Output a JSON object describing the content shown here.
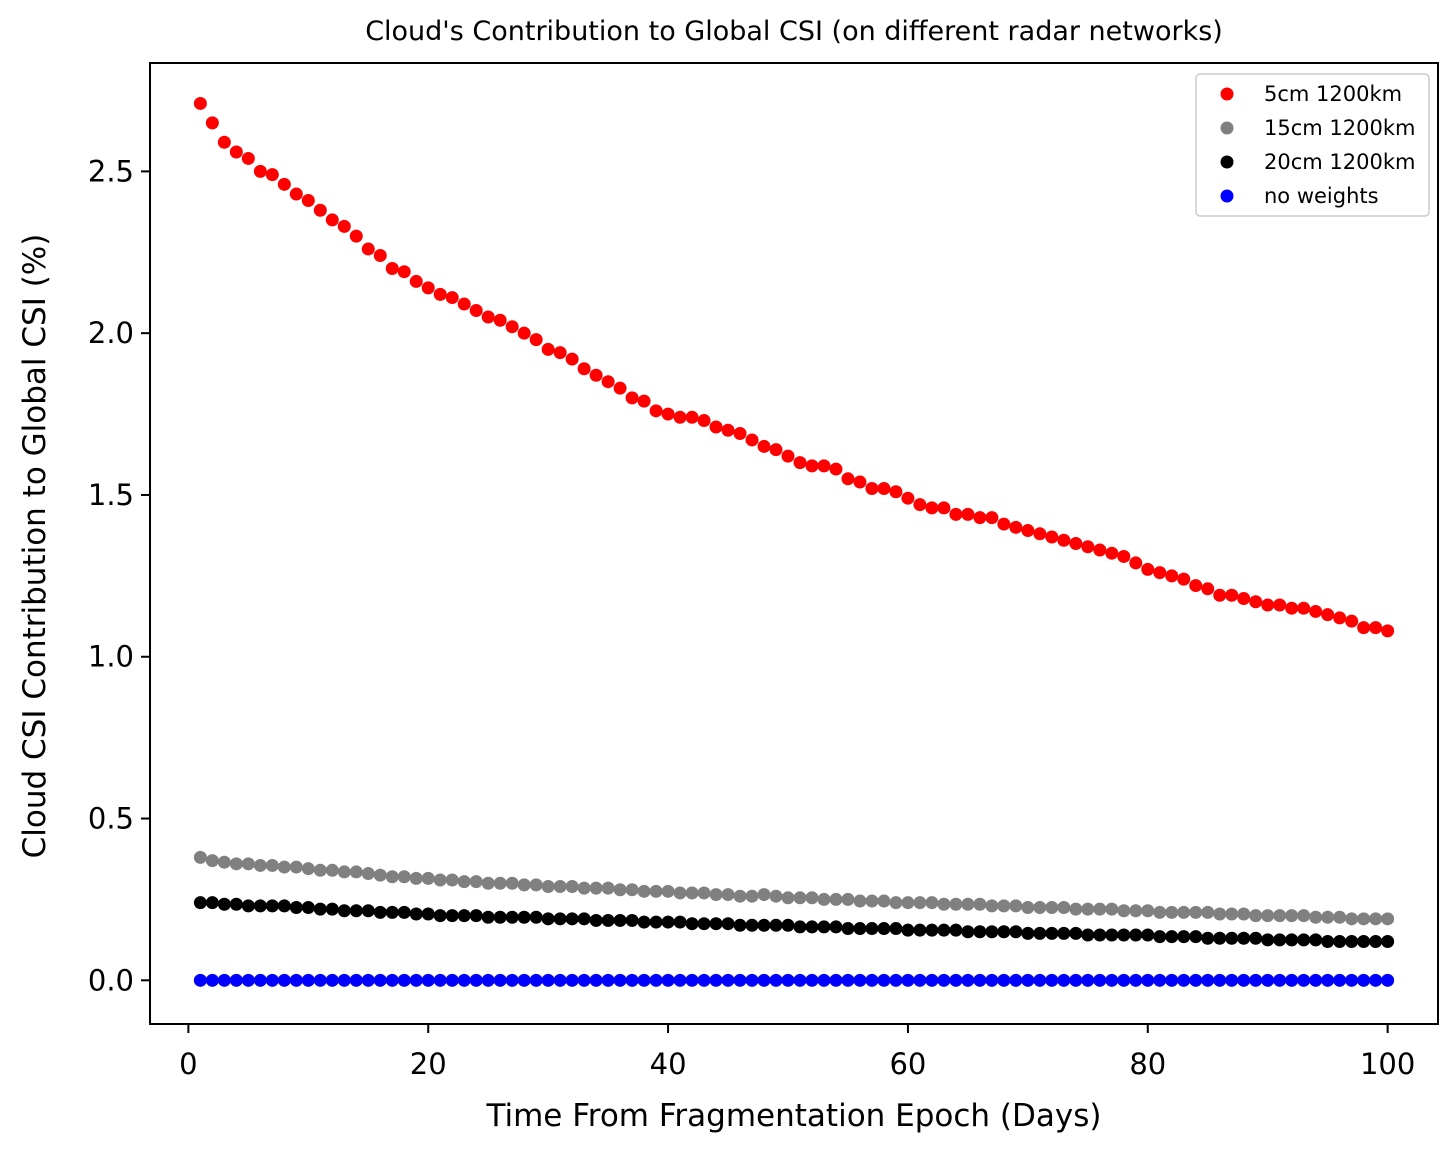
{
  "chart_data": {
    "type": "scatter",
    "title": "Cloud's Contribution to Global CSI (on different radar networks)",
    "xlabel": "Time From Fragmentation Epoch (Days)",
    "ylabel": "Cloud CSI Contribution to Global CSI (%)",
    "xlim": [
      -3.2,
      104.2
    ],
    "ylim": [
      -0.135,
      2.835
    ],
    "xticks": [
      0,
      20,
      40,
      60,
      80,
      100
    ],
    "xtick_labels": [
      "0",
      "20",
      "40",
      "60",
      "80",
      "100"
    ],
    "yticks": [
      0.0,
      0.5,
      1.0,
      1.5,
      2.0,
      2.5
    ],
    "ytick_labels": [
      "0.0",
      "0.5",
      "1.0",
      "1.5",
      "2.0",
      "2.5"
    ],
    "grid": false,
    "legend_position": "top-right",
    "x": [
      1,
      2,
      3,
      4,
      5,
      6,
      7,
      8,
      9,
      10,
      11,
      12,
      13,
      14,
      15,
      16,
      17,
      18,
      19,
      20,
      21,
      22,
      23,
      24,
      25,
      26,
      27,
      28,
      29,
      30,
      31,
      32,
      33,
      34,
      35,
      36,
      37,
      38,
      39,
      40,
      41,
      42,
      43,
      44,
      45,
      46,
      47,
      48,
      49,
      50,
      51,
      52,
      53,
      54,
      55,
      56,
      57,
      58,
      59,
      60,
      61,
      62,
      63,
      64,
      65,
      66,
      67,
      68,
      69,
      70,
      71,
      72,
      73,
      74,
      75,
      76,
      77,
      78,
      79,
      80,
      81,
      82,
      83,
      84,
      85,
      86,
      87,
      88,
      89,
      90,
      91,
      92,
      93,
      94,
      95,
      96,
      97,
      98,
      99,
      100
    ],
    "series": [
      {
        "name": "5cm 1200km",
        "color": "#ff0000",
        "values": [
          2.71,
          2.65,
          2.59,
          2.56,
          2.54,
          2.5,
          2.49,
          2.46,
          2.43,
          2.41,
          2.38,
          2.35,
          2.33,
          2.3,
          2.26,
          2.24,
          2.2,
          2.19,
          2.16,
          2.14,
          2.12,
          2.11,
          2.09,
          2.07,
          2.05,
          2.04,
          2.02,
          2.0,
          1.98,
          1.95,
          1.94,
          1.92,
          1.89,
          1.87,
          1.85,
          1.83,
          1.8,
          1.79,
          1.76,
          1.75,
          1.74,
          1.74,
          1.73,
          1.71,
          1.7,
          1.69,
          1.67,
          1.65,
          1.64,
          1.62,
          1.6,
          1.59,
          1.59,
          1.58,
          1.55,
          1.54,
          1.52,
          1.52,
          1.51,
          1.49,
          1.47,
          1.46,
          1.46,
          1.44,
          1.44,
          1.43,
          1.43,
          1.41,
          1.4,
          1.39,
          1.38,
          1.37,
          1.36,
          1.35,
          1.34,
          1.33,
          1.32,
          1.31,
          1.29,
          1.27,
          1.26,
          1.25,
          1.24,
          1.22,
          1.21,
          1.19,
          1.19,
          1.18,
          1.17,
          1.16,
          1.16,
          1.15,
          1.15,
          1.14,
          1.13,
          1.12,
          1.11,
          1.09,
          1.09,
          1.08
        ]
      },
      {
        "name": "15cm 1200km",
        "color": "#808080",
        "values": [
          0.38,
          0.37,
          0.365,
          0.36,
          0.36,
          0.355,
          0.355,
          0.35,
          0.35,
          0.345,
          0.34,
          0.34,
          0.335,
          0.335,
          0.33,
          0.325,
          0.32,
          0.32,
          0.315,
          0.315,
          0.31,
          0.31,
          0.305,
          0.305,
          0.3,
          0.3,
          0.3,
          0.295,
          0.295,
          0.29,
          0.29,
          0.29,
          0.285,
          0.285,
          0.285,
          0.28,
          0.28,
          0.275,
          0.275,
          0.275,
          0.27,
          0.27,
          0.27,
          0.265,
          0.265,
          0.26,
          0.26,
          0.265,
          0.26,
          0.255,
          0.255,
          0.255,
          0.25,
          0.25,
          0.25,
          0.245,
          0.245,
          0.245,
          0.24,
          0.24,
          0.24,
          0.24,
          0.235,
          0.235,
          0.235,
          0.235,
          0.23,
          0.23,
          0.23,
          0.225,
          0.225,
          0.225,
          0.225,
          0.22,
          0.22,
          0.22,
          0.22,
          0.215,
          0.215,
          0.215,
          0.21,
          0.21,
          0.21,
          0.21,
          0.21,
          0.205,
          0.205,
          0.205,
          0.2,
          0.2,
          0.2,
          0.2,
          0.2,
          0.195,
          0.195,
          0.195,
          0.19,
          0.19,
          0.19,
          0.19
        ]
      },
      {
        "name": "20cm 1200km",
        "color": "#000000",
        "values": [
          0.24,
          0.24,
          0.235,
          0.235,
          0.23,
          0.23,
          0.23,
          0.23,
          0.225,
          0.225,
          0.22,
          0.22,
          0.215,
          0.215,
          0.215,
          0.21,
          0.21,
          0.21,
          0.205,
          0.205,
          0.2,
          0.2,
          0.2,
          0.2,
          0.195,
          0.195,
          0.195,
          0.195,
          0.195,
          0.19,
          0.19,
          0.19,
          0.19,
          0.185,
          0.185,
          0.185,
          0.185,
          0.18,
          0.18,
          0.18,
          0.18,
          0.175,
          0.175,
          0.175,
          0.175,
          0.17,
          0.17,
          0.17,
          0.17,
          0.17,
          0.165,
          0.165,
          0.165,
          0.165,
          0.16,
          0.16,
          0.16,
          0.16,
          0.16,
          0.155,
          0.155,
          0.155,
          0.155,
          0.155,
          0.15,
          0.15,
          0.15,
          0.15,
          0.15,
          0.145,
          0.145,
          0.145,
          0.145,
          0.145,
          0.14,
          0.14,
          0.14,
          0.14,
          0.14,
          0.14,
          0.135,
          0.135,
          0.135,
          0.135,
          0.13,
          0.13,
          0.13,
          0.13,
          0.13,
          0.125,
          0.125,
          0.125,
          0.125,
          0.125,
          0.12,
          0.12,
          0.12,
          0.12,
          0.12,
          0.12
        ]
      },
      {
        "name": "no weights",
        "color": "#0000ff",
        "values": [
          0,
          0,
          0,
          0,
          0,
          0,
          0,
          0,
          0,
          0,
          0,
          0,
          0,
          0,
          0,
          0,
          0,
          0,
          0,
          0,
          0,
          0,
          0,
          0,
          0,
          0,
          0,
          0,
          0,
          0,
          0,
          0,
          0,
          0,
          0,
          0,
          0,
          0,
          0,
          0,
          0,
          0,
          0,
          0,
          0,
          0,
          0,
          0,
          0,
          0,
          0,
          0,
          0,
          0,
          0,
          0,
          0,
          0,
          0,
          0,
          0,
          0,
          0,
          0,
          0,
          0,
          0,
          0,
          0,
          0,
          0,
          0,
          0,
          0,
          0,
          0,
          0,
          0,
          0,
          0,
          0,
          0,
          0,
          0,
          0,
          0,
          0,
          0,
          0,
          0,
          0,
          0,
          0,
          0,
          0,
          0,
          0,
          0,
          0,
          0
        ]
      }
    ]
  }
}
